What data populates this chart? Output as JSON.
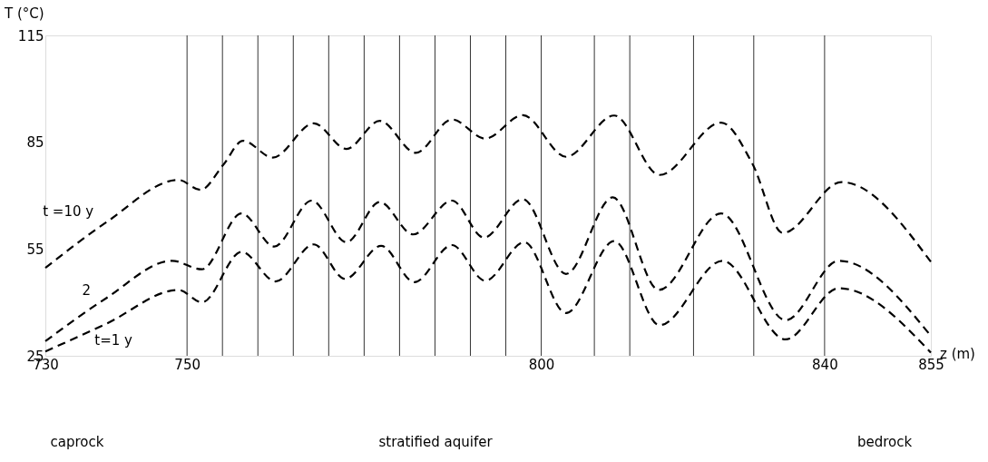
{
  "chart_data": {
    "type": "line",
    "xlabel": "z (m)",
    "ylabel": "T (°C)",
    "xlim": [
      730,
      855
    ],
    "ylim": [
      25,
      115
    ],
    "xticks": [
      730,
      750,
      800,
      840,
      855
    ],
    "yticks": [
      25,
      55,
      85,
      115
    ],
    "grid": false,
    "marker": "none",
    "line_style": "dashed",
    "series": [
      {
        "name": "t =10 y",
        "color": "#000000",
        "x": [
          730,
          738.6,
          748.8,
          751.9,
          755.1,
          757.9,
          762.1,
          767.9,
          772.5,
          777.2,
          782.3,
          787.4,
          792.1,
          797.4,
          803.5,
          810.3,
          816.7,
          825.4,
          829.8,
          834.1,
          842.4,
          855
        ],
        "values": [
          49.7,
          62.5,
          74.4,
          71.6,
          78.6,
          85.4,
          80.7,
          90.3,
          83.1,
          91.0,
          82.0,
          91.4,
          86.0,
          92.6,
          80.9,
          92.5,
          75.8,
          90.5,
          79.0,
          59.5,
          73.8,
          51.4
        ]
      },
      {
        "name": "2",
        "color": "#000000",
        "x": [
          730,
          738.6,
          747.9,
          752.1,
          757.7,
          762.3,
          767.6,
          772.5,
          777.2,
          781.9,
          787.4,
          791.9,
          797.4,
          803.5,
          810.1,
          816.6,
          825.4,
          834.5,
          842.0,
          855
        ],
        "values": [
          29.1,
          41.2,
          51.7,
          49.3,
          65.0,
          55.7,
          68.6,
          56.9,
          68.2,
          59.1,
          68.6,
          58.2,
          69.0,
          48.0,
          69.5,
          43.5,
          65.0,
          35.0,
          51.7,
          30.6
        ]
      },
      {
        "name": "t=1 y",
        "color": "#000000",
        "x": [
          730,
          738.6,
          748.8,
          752.1,
          757.7,
          762.5,
          767.9,
          772.3,
          777.4,
          782.1,
          787.4,
          792.1,
          797.6,
          803.5,
          810.3,
          816.7,
          825.6,
          834.5,
          842.0,
          855
        ],
        "values": [
          26.2,
          34.0,
          43.5,
          40.0,
          54.2,
          45.9,
          56.3,
          46.6,
          55.9,
          45.7,
          56.1,
          46.1,
          56.9,
          37.0,
          57.2,
          33.6,
          51.7,
          29.6,
          44.0,
          25.9
        ]
      }
    ],
    "ref_lines": [
      {
        "axis": "x",
        "value": 750,
        "color": "#000000"
      },
      {
        "axis": "x",
        "value": 755,
        "color": "#000000"
      },
      {
        "axis": "x",
        "value": 760,
        "color": "#000000"
      },
      {
        "axis": "x",
        "value": 765,
        "color": "#000000"
      },
      {
        "axis": "x",
        "value": 770,
        "color": "#000000"
      },
      {
        "axis": "x",
        "value": 775,
        "color": "#000000"
      },
      {
        "axis": "x",
        "value": 780,
        "color": "#000000"
      },
      {
        "axis": "x",
        "value": 785,
        "color": "#000000"
      },
      {
        "axis": "x",
        "value": 790,
        "color": "#000000"
      },
      {
        "axis": "x",
        "value": 795,
        "color": "#000000"
      },
      {
        "axis": "x",
        "value": 800,
        "color": "#000000"
      },
      {
        "axis": "x",
        "value": 807.5,
        "color": "#000000"
      },
      {
        "axis": "x",
        "value": 812.5,
        "color": "#000000"
      },
      {
        "axis": "x",
        "value": 821.5,
        "color": "#000000"
      },
      {
        "axis": "x",
        "value": 830,
        "color": "#000000"
      },
      {
        "axis": "x",
        "value": 840,
        "color": "#000000"
      }
    ],
    "annotations": [
      "caprock",
      "stratified aquifer",
      "bedrock"
    ]
  }
}
